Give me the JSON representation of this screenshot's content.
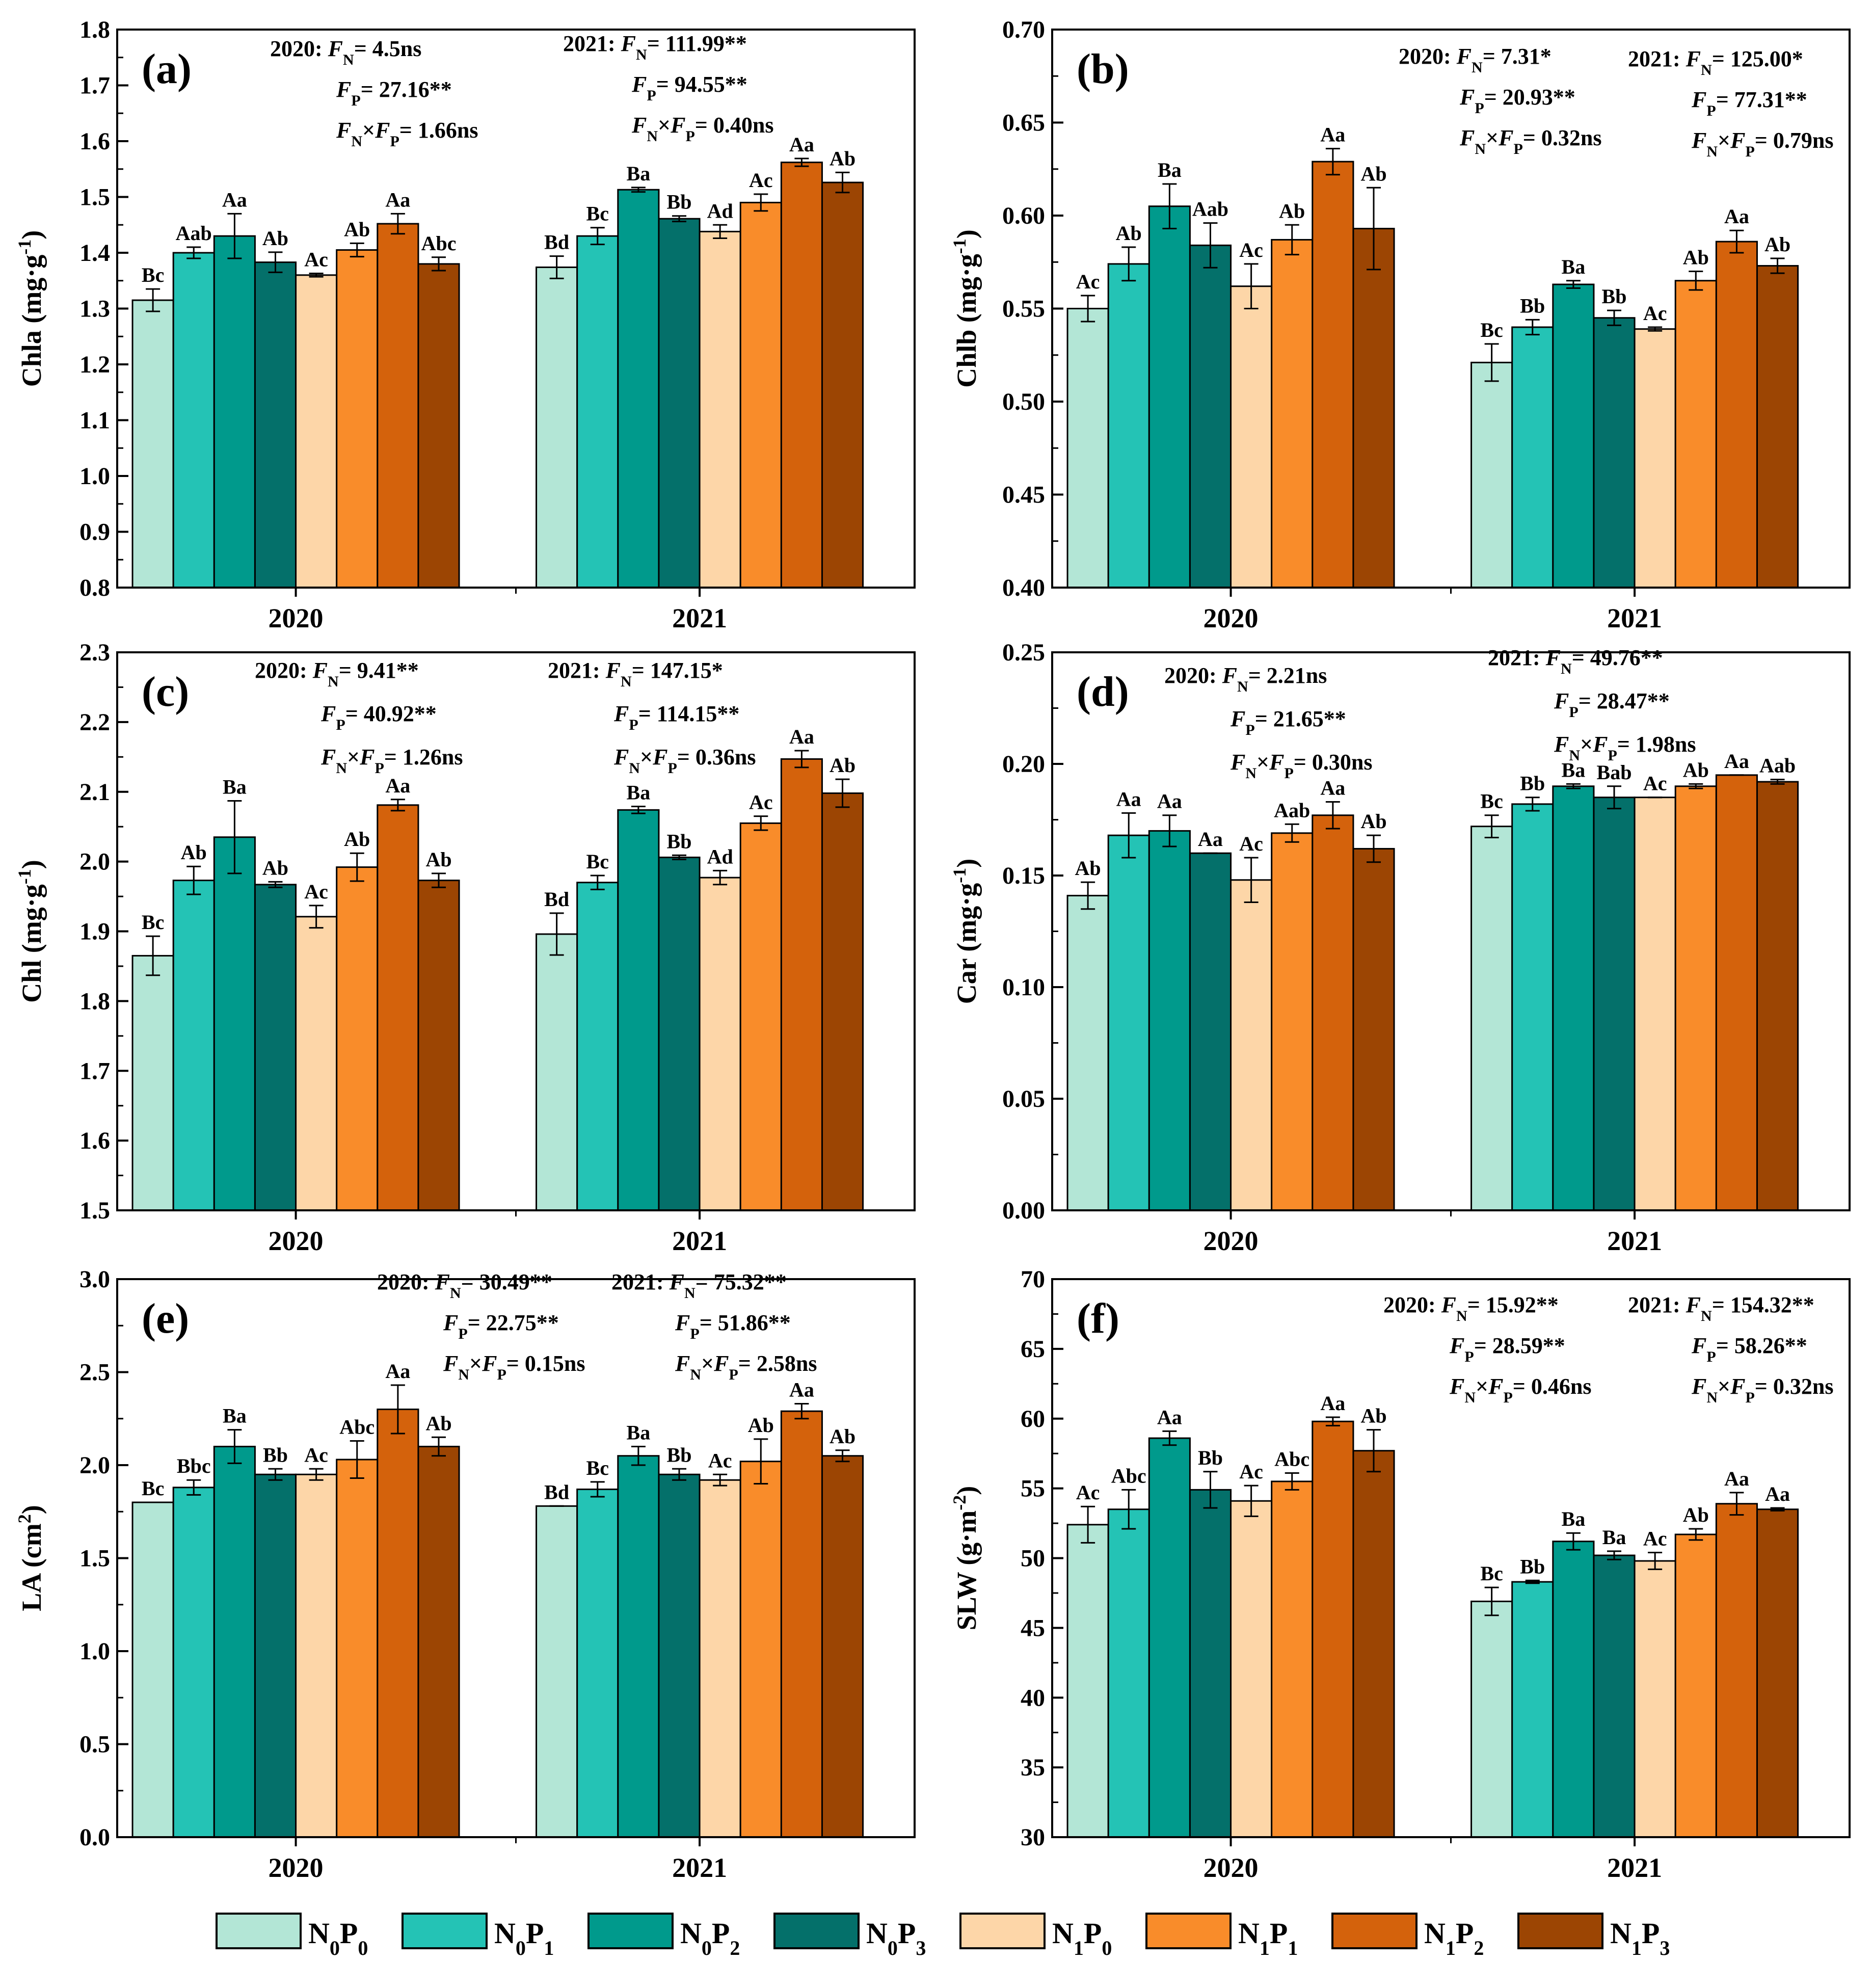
{
  "colors": {
    "N0P0": "#b3e6d6",
    "N0P1": "#24c3b5",
    "N0P2": "#009a8c",
    "N0P3": "#04706a",
    "N1P0": "#fdd6a8",
    "N1P1": "#f98c2a",
    "N1P2": "#d4620c",
    "N1P3": "#9c4503"
  },
  "legend": [
    {
      "key": "N0P0",
      "n": "0",
      "p": "0"
    },
    {
      "key": "N0P1",
      "n": "0",
      "p": "1"
    },
    {
      "key": "N0P2",
      "n": "0",
      "p": "2"
    },
    {
      "key": "N0P3",
      "n": "0",
      "p": "3"
    },
    {
      "key": "N1P0",
      "n": "1",
      "p": "0"
    },
    {
      "key": "N1P1",
      "n": "1",
      "p": "1"
    },
    {
      "key": "N1P2",
      "n": "1",
      "p": "2"
    },
    {
      "key": "N1P3",
      "n": "1",
      "p": "3"
    }
  ],
  "chart_data": [
    {
      "type": "bar",
      "panel": "(a)",
      "ylabel_main": "Chla (mg·g",
      "ylabel_exp": "-1",
      "ylabel_tail": ")",
      "ylim": [
        0.8,
        1.8
      ],
      "yticks": [
        "0.8",
        "0.9",
        "1.0",
        "1.1",
        "1.2",
        "1.3",
        "1.4",
        "1.5",
        "1.6",
        "1.7",
        "1.8"
      ],
      "categories": [
        "2020",
        "2021"
      ],
      "series_names": [
        "N0P0",
        "N0P1",
        "N0P2",
        "N0P3",
        "N1P0",
        "N1P1",
        "N1P2",
        "N1P3"
      ],
      "values": [
        [
          1.315,
          1.4,
          1.43,
          1.383,
          1.36,
          1.405,
          1.452,
          1.38
        ],
        [
          1.374,
          1.43,
          1.513,
          1.461,
          1.438,
          1.49,
          1.562,
          1.526
        ]
      ],
      "errors": [
        [
          0.02,
          0.01,
          0.04,
          0.018,
          0.003,
          0.012,
          0.018,
          0.012
        ],
        [
          0.02,
          0.015,
          0.004,
          0.005,
          0.012,
          0.015,
          0.007,
          0.018
        ]
      ],
      "labels": [
        [
          "Bc",
          "Aab",
          "Aa",
          "Ab",
          "Ac",
          "Ab",
          "Aa",
          "Abc"
        ],
        [
          "Bd",
          "Bc",
          "Ba",
          "Bb",
          "Ad",
          "Ac",
          "Aa",
          "Ab"
        ]
      ],
      "stats": [
        {
          "year": "2020",
          "fn": "4.5ns",
          "fp": "27.16**",
          "fnfp": "1.66ns"
        },
        {
          "year": "2021",
          "fn": "111.99**",
          "fp": "94.55**",
          "fnfp": "0.40ns"
        }
      ]
    },
    {
      "type": "bar",
      "panel": "(b)",
      "ylabel_main": "Chlb (mg·g",
      "ylabel_exp": "-1",
      "ylabel_tail": ")",
      "ylim": [
        0.4,
        0.7
      ],
      "yticks": [
        "0.40",
        "0.45",
        "0.50",
        "0.55",
        "0.60",
        "0.65",
        "0.70"
      ],
      "categories": [
        "2020",
        "2021"
      ],
      "series_names": [
        "N0P0",
        "N0P1",
        "N0P2",
        "N0P3",
        "N1P0",
        "N1P1",
        "N1P2",
        "N1P3"
      ],
      "values": [
        [
          0.55,
          0.574,
          0.605,
          0.584,
          0.562,
          0.587,
          0.629,
          0.593
        ],
        [
          0.521,
          0.54,
          0.563,
          0.545,
          0.539,
          0.565,
          0.586,
          0.573
        ]
      ],
      "errors": [
        [
          0.007,
          0.009,
          0.012,
          0.012,
          0.012,
          0.008,
          0.007,
          0.022
        ],
        [
          0.01,
          0.004,
          0.002,
          0.004,
          0.001,
          0.005,
          0.006,
          0.004
        ]
      ],
      "labels": [
        [
          "Ac",
          "Ab",
          "Ba",
          "Aab",
          "Ac",
          "Ab",
          "Aa",
          "Ab"
        ],
        [
          "Bc",
          "Bb",
          "Ba",
          "Bb",
          "Ac",
          "Ab",
          "Aa",
          "Ab"
        ]
      ],
      "stats": [
        {
          "year": "2020",
          "fn": "7.31*",
          "fp": "20.93**",
          "fnfp": "0.32ns"
        },
        {
          "year": "2021",
          "fn": "125.00*",
          "fp": "77.31**",
          "fnfp": "0.79ns"
        }
      ]
    },
    {
      "type": "bar",
      "panel": "(c)",
      "ylabel_main": "Chl (mg·g",
      "ylabel_exp": "-1",
      "ylabel_tail": ")",
      "ylim": [
        1.5,
        2.3
      ],
      "yticks": [
        "1.5",
        "1.6",
        "1.7",
        "1.8",
        "1.9",
        "2.0",
        "2.1",
        "2.2",
        "2.3"
      ],
      "categories": [
        "2020",
        "2021"
      ],
      "series_names": [
        "N0P0",
        "N0P1",
        "N0P2",
        "N0P3",
        "N1P0",
        "N1P1",
        "N1P2",
        "N1P3"
      ],
      "values": [
        [
          1.865,
          1.973,
          2.035,
          1.967,
          1.921,
          1.992,
          2.081,
          1.973
        ],
        [
          1.896,
          1.97,
          2.074,
          2.006,
          1.977,
          2.055,
          2.147,
          2.098
        ]
      ],
      "errors": [
        [
          0.028,
          0.02,
          0.052,
          0.004,
          0.016,
          0.02,
          0.008,
          0.01
        ],
        [
          0.03,
          0.01,
          0.005,
          0.003,
          0.01,
          0.01,
          0.012,
          0.02
        ]
      ],
      "labels": [
        [
          "Bc",
          "Ab",
          "Ba",
          "Ab",
          "Ac",
          "Ab",
          "Aa",
          "Ab"
        ],
        [
          "Bd",
          "Bc",
          "Ba",
          "Bb",
          "Ad",
          "Ac",
          "Aa",
          "Ab"
        ]
      ],
      "stats": [
        {
          "year": "2020",
          "fn": "9.41**",
          "fp": "40.92**",
          "fnfp": "1.26ns"
        },
        {
          "year": "2021",
          "fn": "147.15*",
          "fp": "114.15**",
          "fnfp": "0.36ns"
        }
      ]
    },
    {
      "type": "bar",
      "panel": "(d)",
      "ylabel_main": "Car (mg·g",
      "ylabel_exp": "-1",
      "ylabel_tail": ")",
      "ylim": [
        0.0,
        0.25
      ],
      "yticks": [
        "0.00",
        "0.05",
        "0.10",
        "0.15",
        "0.20",
        "0.25"
      ],
      "categories": [
        "2020",
        "2021"
      ],
      "series_names": [
        "N0P0",
        "N0P1",
        "N0P2",
        "N0P3",
        "N1P0",
        "N1P1",
        "N1P2",
        "N1P3"
      ],
      "values": [
        [
          0.141,
          0.168,
          0.17,
          0.16,
          0.148,
          0.169,
          0.177,
          0.162
        ],
        [
          0.172,
          0.182,
          0.19,
          0.185,
          0.185,
          0.19,
          0.195,
          0.192
        ]
      ],
      "errors": [
        [
          0.006,
          0.01,
          0.007,
          0.0,
          0.01,
          0.004,
          0.006,
          0.006
        ],
        [
          0.005,
          0.003,
          0.001,
          0.005,
          0.0,
          0.001,
          0.0,
          0.001
        ]
      ],
      "labels": [
        [
          "Ab",
          "Aa",
          "Aa",
          "Aa",
          "Ac",
          "Aab",
          "Aa",
          "Ab"
        ],
        [
          "Bc",
          "Bb",
          "Ba",
          "Bab",
          "Ac",
          "Ab",
          "Aa",
          "Aab"
        ]
      ],
      "stats": [
        {
          "year": "2020",
          "fn": "2.21ns",
          "fp": "21.65**",
          "fnfp": "0.30ns"
        },
        {
          "year": "2021",
          "fn": "49.76**",
          "fp": "28.47**",
          "fnfp": "1.98ns"
        }
      ]
    },
    {
      "type": "bar",
      "panel": "(e)",
      "ylabel_main": "LA (cm",
      "ylabel_exp": "2",
      "ylabel_tail": ")",
      "ylim": [
        0.0,
        3.0
      ],
      "yticks": [
        "0.0",
        "0.5",
        "1.0",
        "1.5",
        "2.0",
        "2.5",
        "3.0"
      ],
      "categories": [
        "2020",
        "2021"
      ],
      "series_names": [
        "N0P0",
        "N0P1",
        "N0P2",
        "N0P3",
        "N1P0",
        "N1P1",
        "N1P2",
        "N1P3"
      ],
      "values": [
        [
          1.8,
          1.88,
          2.1,
          1.95,
          1.95,
          2.03,
          2.3,
          2.1
        ],
        [
          1.78,
          1.87,
          2.05,
          1.95,
          1.92,
          2.02,
          2.29,
          2.05
        ]
      ],
      "errors": [
        [
          0.0,
          0.04,
          0.09,
          0.03,
          0.03,
          0.1,
          0.13,
          0.05
        ],
        [
          0.0,
          0.04,
          0.05,
          0.03,
          0.03,
          0.12,
          0.04,
          0.03
        ]
      ],
      "labels": [
        [
          "Bc",
          "Bbc",
          "Ba",
          "Bb",
          "Ac",
          "Abc",
          "Aa",
          "Ab"
        ],
        [
          "Bd",
          "Bc",
          "Ba",
          "Bb",
          "Ac",
          "Ab",
          "Aa",
          "Ab"
        ]
      ],
      "stats": [
        {
          "year": "2020",
          "fn": "30.49**",
          "fp": "22.75**",
          "fnfp": "0.15ns"
        },
        {
          "year": "2021",
          "fn": "75.32**",
          "fp": "51.86**",
          "fnfp": "2.58ns"
        }
      ]
    },
    {
      "type": "bar",
      "panel": "(f)",
      "ylabel_main": "SLW (g·m",
      "ylabel_exp": "-2",
      "ylabel_tail": ")",
      "ylim": [
        30,
        70
      ],
      "yticks": [
        "30",
        "35",
        "40",
        "45",
        "50",
        "55",
        "60",
        "65",
        "70"
      ],
      "categories": [
        "2020",
        "2021"
      ],
      "series_names": [
        "N0P0",
        "N0P1",
        "N0P2",
        "N0P3",
        "N1P0",
        "N1P1",
        "N1P2",
        "N1P3"
      ],
      "values": [
        [
          52.4,
          53.5,
          58.6,
          54.9,
          54.1,
          55.5,
          59.8,
          57.7
        ],
        [
          46.9,
          48.3,
          51.2,
          50.2,
          49.8,
          51.7,
          53.9,
          53.5
        ]
      ],
      "errors": [
        [
          1.3,
          1.4,
          0.5,
          1.3,
          1.1,
          0.6,
          0.3,
          1.5
        ],
        [
          1.0,
          0.1,
          0.6,
          0.3,
          0.6,
          0.4,
          0.8,
          0.1
        ]
      ],
      "labels": [
        [
          "Ac",
          "Abc",
          "Aa",
          "Bb",
          "Ac",
          "Abc",
          "Aa",
          "Ab"
        ],
        [
          "Bc",
          "Bb",
          "Ba",
          "Ba",
          "Ac",
          "Ab",
          "Aa",
          "Aa"
        ]
      ],
      "stats": [
        {
          "year": "2020",
          "fn": "15.92**",
          "fp": "28.59**",
          "fnfp": "0.46ns"
        },
        {
          "year": "2021",
          "fn": "154.32**",
          "fp": "58.26**",
          "fnfp": "0.32ns"
        }
      ]
    }
  ]
}
